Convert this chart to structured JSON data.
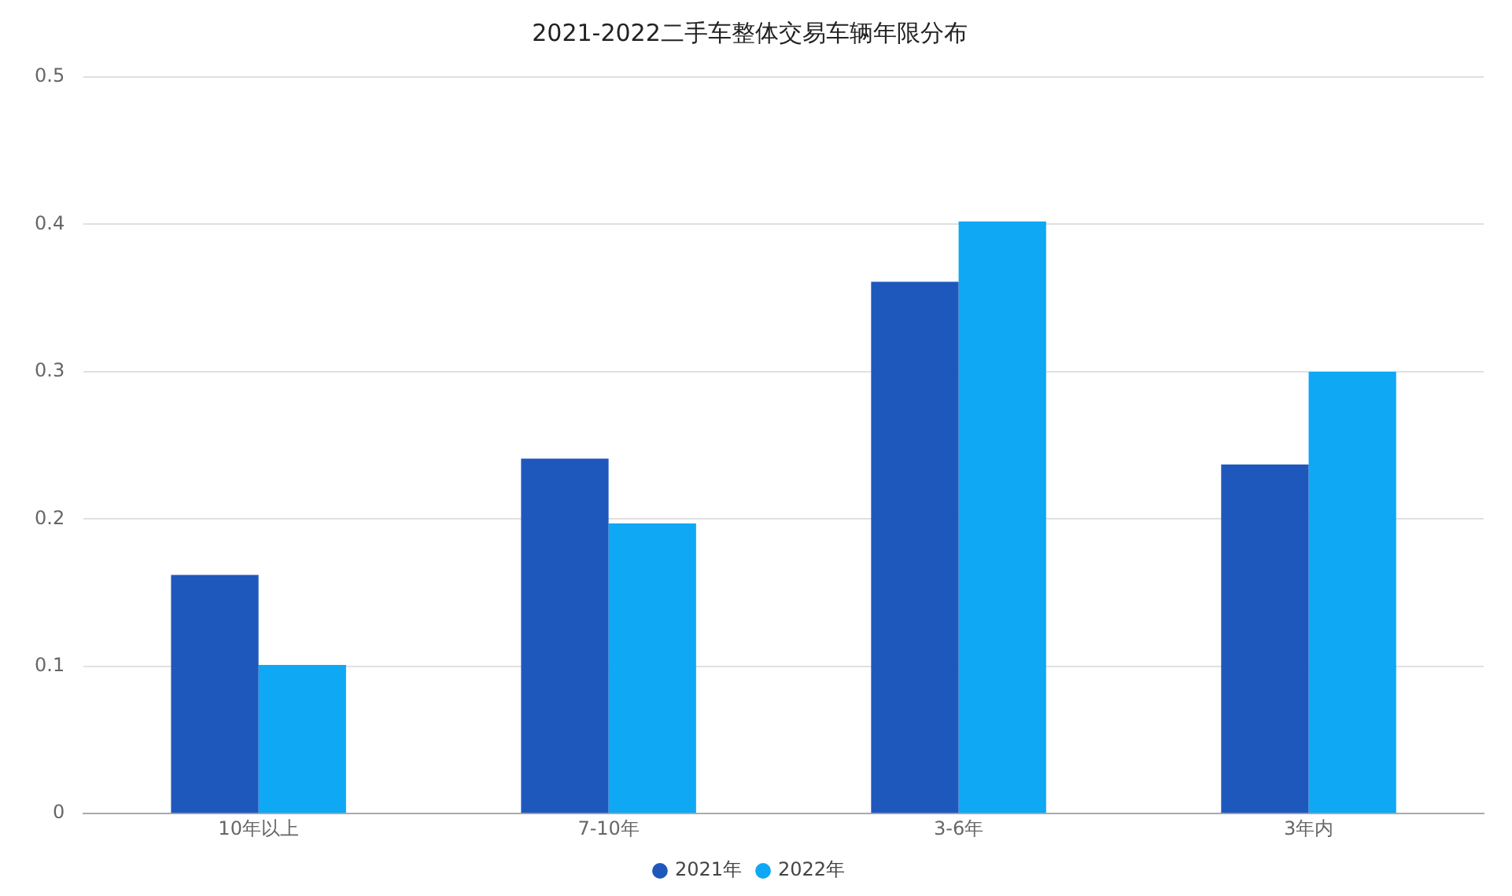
{
  "chart_data": {
    "type": "bar",
    "title": "2021-2022二手车整体交易车辆年限分布",
    "categories": [
      "10年以上",
      "7-10年",
      "3-6年",
      "3年内"
    ],
    "series": [
      {
        "name": "2021年",
        "color": "#1f58bd",
        "values": [
          0.162,
          0.241,
          0.361,
          0.237
        ]
      },
      {
        "name": "2022年",
        "color": "#0ea8f5",
        "values": [
          0.101,
          0.197,
          0.402,
          0.3
        ]
      }
    ],
    "ylim": [
      0,
      0.5
    ],
    "yticks": [
      0,
      0.1,
      0.2,
      0.3,
      0.4,
      0.5
    ],
    "grid": "y",
    "legend": "bottom"
  }
}
